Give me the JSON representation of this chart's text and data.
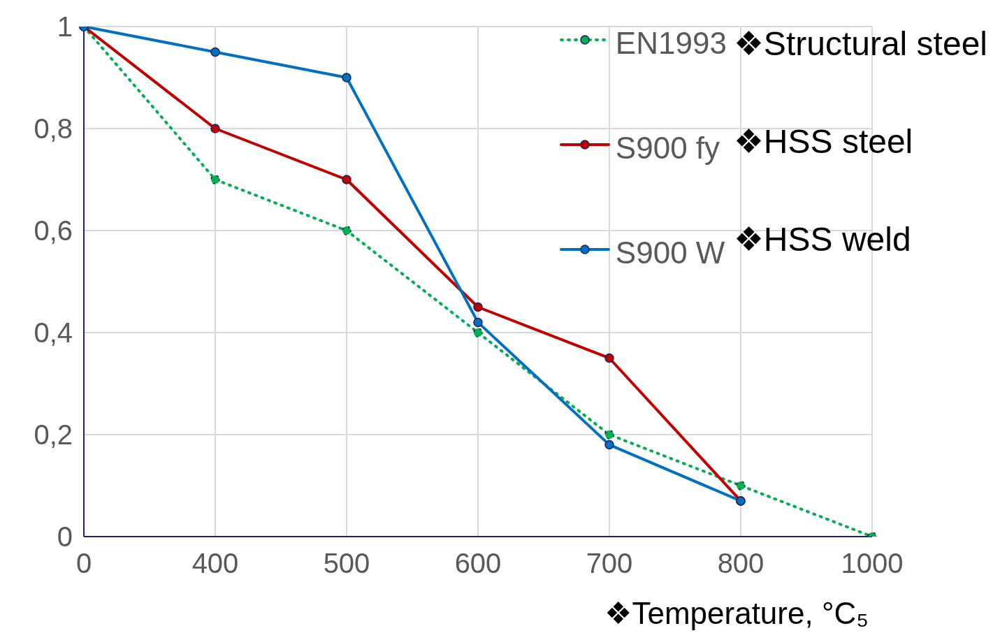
{
  "chart_data": {
    "type": "line",
    "xlabel": "❖Temperature, °C₅",
    "categories": [
      "0",
      "400",
      "500",
      "600",
      "700",
      "800",
      "1000"
    ],
    "series": [
      {
        "name": "EN1993",
        "color": "#00b050",
        "values": [
          1,
          0.7,
          0.6,
          0.4,
          0.2,
          0.1,
          0
        ],
        "line_style": "dotted"
      },
      {
        "name": "S900 fy",
        "color": "#c00000",
        "values": [
          1,
          0.8,
          0.7,
          0.45,
          0.35,
          0.07,
          null
        ],
        "line_style": "solid"
      },
      {
        "name": "S900 W",
        "color": "#0070c0",
        "values": [
          1,
          0.95,
          0.9,
          0.42,
          0.18,
          0.07,
          null
        ],
        "line_style": "solid"
      }
    ],
    "annotations": [
      "❖Structural steel",
      "❖HSS steel",
      "❖HSS weld"
    ],
    "ylim": [
      0,
      1
    ],
    "yticks": [
      0,
      {
        "value": 0.2,
        "label": "0,2"
      },
      {
        "value": 0.4,
        "label": "0,4"
      },
      {
        "value": 0.6,
        "label": "0,6"
      },
      {
        "value": 0.8,
        "label": "0,8"
      },
      1
    ],
    "grid": true,
    "legend": "top right",
    "marker": "circle"
  }
}
